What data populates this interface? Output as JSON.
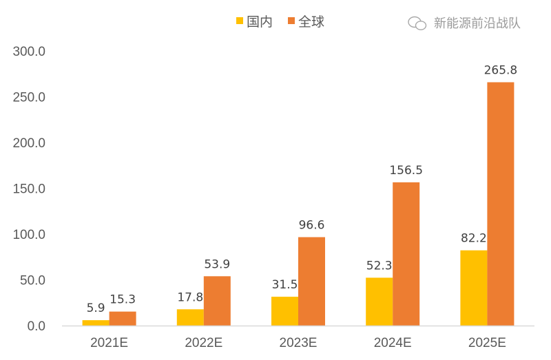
{
  "chart_data": {
    "type": "bar",
    "title": "",
    "xlabel": "",
    "ylabel": "",
    "categories": [
      "2021E",
      "2022E",
      "2023E",
      "2024E",
      "2025E"
    ],
    "series": [
      {
        "name": "国内",
        "color": "#FFC000",
        "values": [
          5.9,
          17.8,
          31.5,
          52.3,
          82.2
        ]
      },
      {
        "name": "全球",
        "color": "#ED7D31",
        "values": [
          15.3,
          53.9,
          96.6,
          156.5,
          265.8
        ]
      }
    ],
    "ylim": [
      0,
      300
    ],
    "yticks": [
      "0.0",
      "50.0",
      "100.0",
      "150.0",
      "200.0",
      "250.0",
      "300.0"
    ],
    "grid": false,
    "legend_position": "top-center",
    "data_labels": true
  },
  "watermark": {
    "text": "新能源前沿战队",
    "icon": "wechat-icon"
  }
}
